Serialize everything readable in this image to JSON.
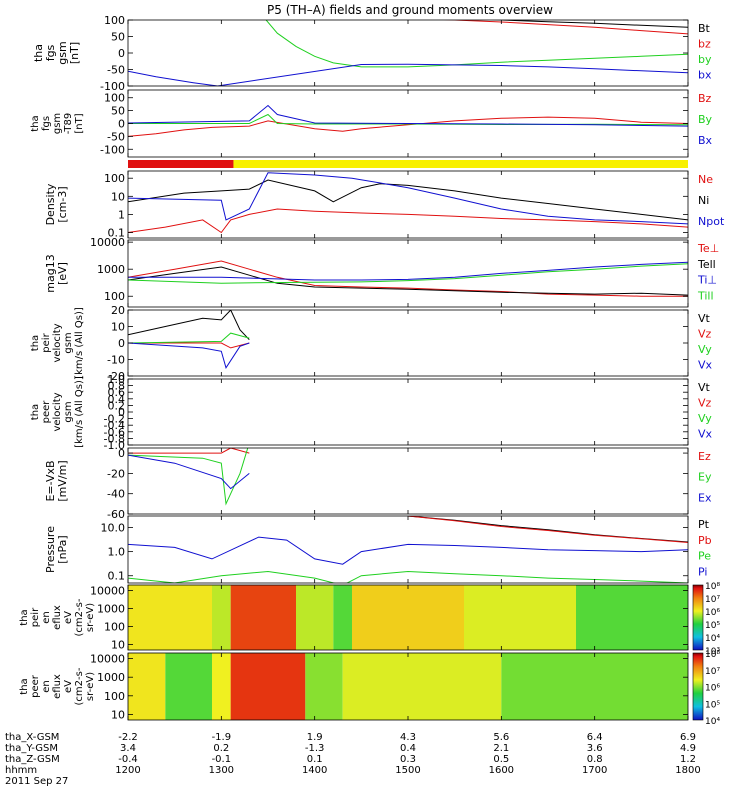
{
  "title": "P5 (TH–A) fields and ground moments overview",
  "colors": {
    "black": "#000000",
    "red": "#e01010",
    "green": "#20d020",
    "blue": "#1010d0"
  },
  "chart_data": [
    {
      "type": "line",
      "panel": "fgs",
      "ylabel": [
        "tha",
        "fgs",
        "gsm",
        "[nT]"
      ],
      "ylim": [
        -100,
        100
      ],
      "yscale": "linear",
      "yticks": [
        "100",
        "50",
        "0",
        "-50",
        "-100"
      ],
      "series": [
        {
          "name": "Bt",
          "color": "black",
          "x": [
            1200,
            1340,
            1380,
            1420,
            1450,
            1500,
            1550,
            1600,
            1650,
            1700,
            1750,
            1800
          ],
          "y": [
            130,
            125,
            122,
            118,
            116,
            110,
            106,
            100,
            95,
            90,
            84,
            78
          ]
        },
        {
          "name": "bz",
          "color": "red",
          "x": [
            1200,
            1340,
            1400,
            1450,
            1500,
            1550,
            1600,
            1650,
            1700,
            1750,
            1800
          ],
          "y": [
            130,
            124,
            118,
            112,
            106,
            100,
            94,
            86,
            78,
            68,
            58
          ]
        },
        {
          "name": "by",
          "color": "green",
          "x": [
            1200,
            1345,
            1360,
            1380,
            1400,
            1420,
            1450,
            1500,
            1550,
            1600,
            1650,
            1700,
            1750,
            1800
          ],
          "y": [
            130,
            110,
            60,
            20,
            -10,
            -30,
            -42,
            -42,
            -36,
            -28,
            -22,
            -16,
            -10,
            -4
          ]
        },
        {
          "name": "bx",
          "color": "blue",
          "x": [
            1200,
            1230,
            1270,
            1296,
            1450,
            1500,
            1550,
            1600,
            1650,
            1700,
            1750,
            1800
          ],
          "y": [
            -55,
            -72,
            -90,
            -100,
            -35,
            -34,
            -36,
            -38,
            -42,
            -48,
            -54,
            -60
          ]
        }
      ]
    },
    {
      "type": "line",
      "panel": "fgs-dsl",
      "ylabel": [
        "tha",
        "fgs",
        "gsm",
        "-T89",
        "[nT]"
      ],
      "ylim": [
        -130,
        130
      ],
      "yscale": "linear",
      "yticks": [
        "100",
        "50",
        "0",
        "-50",
        "-100"
      ],
      "series": [
        {
          "name": "Bz",
          "color": "red",
          "x": [
            1200,
            1230,
            1260,
            1290,
            1330,
            1350,
            1400,
            1430,
            1450,
            1500,
            1550,
            1600,
            1650,
            1700,
            1750,
            1800
          ],
          "y": [
            -50,
            -40,
            -25,
            -15,
            -10,
            10,
            -20,
            -30,
            -20,
            -5,
            10,
            20,
            25,
            20,
            5,
            0
          ]
        },
        {
          "name": "By",
          "color": "green",
          "x": [
            1200,
            1330,
            1350,
            1360,
            1400,
            1500,
            1600,
            1700,
            1800
          ],
          "y": [
            0,
            0,
            35,
            0,
            -2,
            -2,
            -4,
            -3,
            -5
          ]
        },
        {
          "name": "Bx",
          "color": "blue",
          "x": [
            1200,
            1330,
            1350,
            1360,
            1400,
            1500,
            1600,
            1700,
            1800
          ],
          "y": [
            2,
            10,
            70,
            35,
            2,
            0,
            -2,
            -5,
            -10
          ]
        }
      ]
    },
    {
      "type": "bar_status",
      "panel": "mode",
      "segments": [
        {
          "x0": 1200,
          "x1": 1313,
          "color": "red"
        },
        {
          "x0": 1313,
          "x1": 1800,
          "color": "yellow"
        }
      ]
    },
    {
      "type": "line",
      "panel": "density",
      "ylabel": [
        "Density",
        "[cm-3]"
      ],
      "ylim": [
        0.05,
        250
      ],
      "yscale": "log",
      "yticks": [
        "100",
        "10",
        "1",
        "0.1"
      ],
      "ytickvals": [
        100,
        10,
        1,
        0.1
      ],
      "series": [
        {
          "name": "Ne",
          "color": "red",
          "x": [
            1200,
            1240,
            1280,
            1300,
            1310,
            1330,
            1360,
            1400,
            1450,
            1500,
            1550,
            1600,
            1650,
            1700,
            1750,
            1800
          ],
          "y": [
            0.1,
            0.2,
            0.5,
            0.1,
            0.5,
            1,
            2,
            1.5,
            1.2,
            1,
            0.8,
            0.6,
            0.5,
            0.4,
            0.3,
            0.2
          ]
        },
        {
          "name": "Ni",
          "color": "black",
          "x": [
            1200,
            1260,
            1300,
            1330,
            1350,
            1400,
            1420,
            1450,
            1470,
            1500,
            1550,
            1600,
            1650,
            1700,
            1750,
            1800
          ],
          "y": [
            5,
            15,
            20,
            25,
            80,
            20,
            5,
            30,
            50,
            40,
            20,
            8,
            4,
            2,
            1,
            0.5
          ]
        },
        {
          "name": "Npot",
          "color": "blue",
          "x": [
            1200,
            1300,
            1305,
            1330,
            1350,
            1400,
            1440,
            1500,
            1550,
            1600,
            1650,
            1700,
            1750,
            1800
          ],
          "y": [
            8,
            6,
            0.5,
            2,
            200,
            150,
            100,
            30,
            8,
            2,
            0.8,
            0.5,
            0.4,
            0.3
          ]
        }
      ]
    },
    {
      "type": "line",
      "panel": "temperature",
      "ylabel": [
        "mag13",
        "[eV]"
      ],
      "ylim": [
        40,
        12000
      ],
      "yscale": "log",
      "yticks": [
        "10000",
        "1000",
        "100"
      ],
      "ytickvals": [
        10000,
        1000,
        100
      ],
      "series": [
        {
          "name": "Te⊥",
          "color": "red",
          "x": [
            1200,
            1250,
            1300,
            1330,
            1360,
            1400,
            1450,
            1500,
            1550,
            1600,
            1650,
            1700,
            1750,
            1800
          ],
          "y": [
            500,
            1000,
            2000,
            1000,
            500,
            250,
            220,
            200,
            170,
            150,
            120,
            110,
            100,
            100
          ]
        },
        {
          "name": "Tell",
          "color": "black",
          "x": [
            1200,
            1250,
            1300,
            1330,
            1360,
            1400,
            1450,
            1500,
            1550,
            1600,
            1650,
            1700,
            1750,
            1800
          ],
          "y": [
            400,
            700,
            1200,
            600,
            300,
            220,
            200,
            180,
            160,
            140,
            130,
            120,
            130,
            110
          ]
        },
        {
          "name": "Ti⊥",
          "color": "blue",
          "x": [
            1200,
            1300,
            1350,
            1400,
            1450,
            1500,
            1550,
            1600,
            1650,
            1700,
            1750,
            1800
          ],
          "y": [
            500,
            500,
            450,
            400,
            400,
            420,
            500,
            700,
            900,
            1200,
            1500,
            1800
          ]
        },
        {
          "name": "Till",
          "color": "green",
          "x": [
            1200,
            1300,
            1350,
            1400,
            1450,
            1500,
            1550,
            1600,
            1650,
            1700,
            1750,
            1800
          ],
          "y": [
            400,
            300,
            320,
            330,
            340,
            380,
            450,
            600,
            800,
            1000,
            1300,
            1600
          ]
        }
      ]
    },
    {
      "type": "line",
      "panel": "ion-velocity",
      "ylabel": [
        "tha",
        "peir",
        "velocity",
        "gsm",
        "[km/s (All Qs)]"
      ],
      "ylim": [
        -20,
        20
      ],
      "yscale": "linear",
      "yticks": [
        "20",
        "10",
        "0",
        "-10",
        "-20"
      ],
      "series": [
        {
          "name": "Vt",
          "color": "black",
          "x": [
            1200,
            1240,
            1280,
            1300,
            1310,
            1320,
            1330
          ],
          "y": [
            5,
            10,
            15,
            14,
            20,
            8,
            2
          ]
        },
        {
          "name": "Vz",
          "color": "red",
          "x": [
            1200,
            1300,
            1310,
            1330
          ],
          "y": [
            0,
            0,
            -3,
            0
          ]
        },
        {
          "name": "Vy",
          "color": "green",
          "x": [
            1200,
            1300,
            1310,
            1330
          ],
          "y": [
            0,
            1,
            6,
            3
          ]
        },
        {
          "name": "Vx",
          "color": "blue",
          "x": [
            1200,
            1280,
            1300,
            1305,
            1320,
            1330
          ],
          "y": [
            0,
            -3,
            -5,
            -15,
            -2,
            0
          ]
        }
      ]
    },
    {
      "type": "line",
      "panel": "electron-velocity",
      "ylabel": [
        "tha",
        "peer",
        "velocity",
        "gsm",
        "[km/s (All Qs)]"
      ],
      "ylim": [
        -1,
        1
      ],
      "yscale": "linear",
      "yticks": [
        "1.0",
        "0.8",
        "0.6",
        "0.4",
        "0.2",
        "0",
        "-0.2",
        "-0.4",
        "-0.6",
        "-0.8",
        "-1.0"
      ],
      "series": [
        {
          "name": "Vt",
          "color": "black",
          "x": [],
          "y": []
        },
        {
          "name": "Vz",
          "color": "red",
          "x": [],
          "y": []
        },
        {
          "name": "Vy",
          "color": "green",
          "x": [],
          "y": []
        },
        {
          "name": "Vx",
          "color": "blue",
          "x": [],
          "y": []
        }
      ]
    },
    {
      "type": "line",
      "panel": "efield",
      "ylabel": [
        "E=-VxB",
        "[mV/m]"
      ],
      "ylim": [
        -60,
        5
      ],
      "yscale": "linear",
      "yticks": [
        "0",
        "-20",
        "-40",
        "-60"
      ],
      "series": [
        {
          "name": "Ez",
          "color": "red",
          "x": [
            1200,
            1300,
            1310,
            1330
          ],
          "y": [
            0,
            0,
            5,
            0
          ]
        },
        {
          "name": "Ey",
          "color": "green",
          "x": [
            1200,
            1280,
            1300,
            1305,
            1320,
            1330
          ],
          "y": [
            -2,
            -5,
            -10,
            -50,
            -20,
            10
          ]
        },
        {
          "name": "Ex",
          "color": "blue",
          "x": [
            1200,
            1250,
            1300,
            1310,
            1330
          ],
          "y": [
            -2,
            -10,
            -25,
            -35,
            -20
          ]
        }
      ]
    },
    {
      "type": "line",
      "panel": "pressure",
      "ylabel": [
        "Pressure",
        "[nPa]"
      ],
      "ylim": [
        0.05,
        30
      ],
      "yscale": "log",
      "yticks": [
        "10.0",
        "1.0",
        "0.1"
      ],
      "ytickvals": [
        10,
        1,
        0.1
      ],
      "series": [
        {
          "name": "Pt",
          "color": "black",
          "x": [
            1500,
            1550,
            1600,
            1650,
            1700,
            1750,
            1800
          ],
          "y": [
            30,
            20,
            12,
            8,
            5,
            3.5,
            2.5
          ]
        },
        {
          "name": "Pb",
          "color": "red",
          "x": [
            1500,
            1550,
            1600,
            1650,
            1700,
            1750,
            1800
          ],
          "y": [
            30,
            19,
            11,
            7.5,
            4.8,
            3.4,
            2.4
          ]
        },
        {
          "name": "Pe",
          "color": "green",
          "x": [
            1200,
            1250,
            1300,
            1350,
            1400,
            1430,
            1450,
            1500,
            1550,
            1600,
            1650,
            1700,
            1750,
            1800
          ],
          "y": [
            0.08,
            0.05,
            0.1,
            0.15,
            0.08,
            0.04,
            0.1,
            0.15,
            0.12,
            0.1,
            0.08,
            0.07,
            0.06,
            0.05
          ]
        },
        {
          "name": "Pi",
          "color": "blue",
          "x": [
            1200,
            1250,
            1290,
            1340,
            1370,
            1400,
            1430,
            1450,
            1500,
            1550,
            1600,
            1650,
            1700,
            1750,
            1800
          ],
          "y": [
            2,
            1.5,
            0.5,
            4,
            3,
            0.5,
            0.3,
            1,
            2,
            1.8,
            1.5,
            1.2,
            1.1,
            1,
            1.2
          ]
        }
      ]
    },
    {
      "type": "heatmap",
      "panel": "ion-spectrogram",
      "ylabel": [
        "tha",
        "peir",
        "en",
        "eflux",
        "eV",
        "(cm2-s-",
        "sr-eV)"
      ],
      "yscale": "log",
      "ylim": [
        5,
        20000
      ],
      "yticks": [
        "10000",
        "1000",
        "100",
        "10"
      ],
      "ytickvals": [
        10000,
        1000,
        100,
        10
      ],
      "colorbar": {
        "min": 3,
        "max": 8,
        "ticks": [
          "10³",
          "10⁴",
          "10⁵",
          "10⁶",
          "10⁷",
          "10⁸"
        ]
      },
      "regions": [
        {
          "x0": 1200,
          "x1": 1290,
          "level": 0.62
        },
        {
          "x0": 1290,
          "x1": 1310,
          "level": 0.55
        },
        {
          "x0": 1310,
          "x1": 1380,
          "level": 0.88
        },
        {
          "x0": 1380,
          "x1": 1420,
          "level": 0.55
        },
        {
          "x0": 1420,
          "x1": 1440,
          "level": 0.45
        },
        {
          "x0": 1440,
          "x1": 1560,
          "level": 0.66
        },
        {
          "x0": 1560,
          "x1": 1680,
          "level": 0.58
        },
        {
          "x0": 1680,
          "x1": 1800,
          "level": 0.45
        }
      ]
    },
    {
      "type": "heatmap",
      "panel": "electron-spectrogram",
      "ylabel": [
        "tha",
        "peer",
        "en",
        "eflux",
        "eV",
        "(cm2-s-",
        "sr-eV)"
      ],
      "yscale": "log",
      "ylim": [
        5,
        20000
      ],
      "yticks": [
        "10000",
        "1000",
        "100",
        "10"
      ],
      "ytickvals": [
        10000,
        1000,
        100,
        10
      ],
      "colorbar": {
        "min": 4,
        "max": 8,
        "ticks": [
          "10⁴",
          "10⁵",
          "10⁶",
          "10⁷",
          "10⁸"
        ]
      },
      "regions": [
        {
          "x0": 1200,
          "x1": 1240,
          "level": 0.62
        },
        {
          "x0": 1240,
          "x1": 1290,
          "level": 0.45
        },
        {
          "x0": 1290,
          "x1": 1310,
          "level": 0.6
        },
        {
          "x0": 1310,
          "x1": 1390,
          "level": 0.9
        },
        {
          "x0": 1390,
          "x1": 1430,
          "level": 0.5
        },
        {
          "x0": 1430,
          "x1": 1600,
          "level": 0.58
        },
        {
          "x0": 1600,
          "x1": 1800,
          "level": 0.48
        }
      ]
    }
  ],
  "xaxis": {
    "xlim": [
      1200,
      1800
    ],
    "rows": [
      {
        "label": "tha_X-GSM",
        "values": [
          "-2.2",
          "-1.9",
          "1.9",
          "4.3",
          "5.6",
          "6.4",
          "6.9"
        ]
      },
      {
        "label": "tha_Y-GSM",
        "values": [
          "3.4",
          "0.2",
          "-1.3",
          "0.4",
          "2.1",
          "3.6",
          "4.9"
        ]
      },
      {
        "label": "tha_Z-GSM",
        "values": [
          "-0.4",
          "-0.1",
          "0.1",
          "0.3",
          "0.5",
          "0.8",
          "1.2"
        ]
      },
      {
        "label": "hhmm",
        "values": [
          "1200",
          "1300",
          "1400",
          "1500",
          "1600",
          "1700",
          "1800"
        ]
      }
    ],
    "date": "2011 Sep 27"
  }
}
